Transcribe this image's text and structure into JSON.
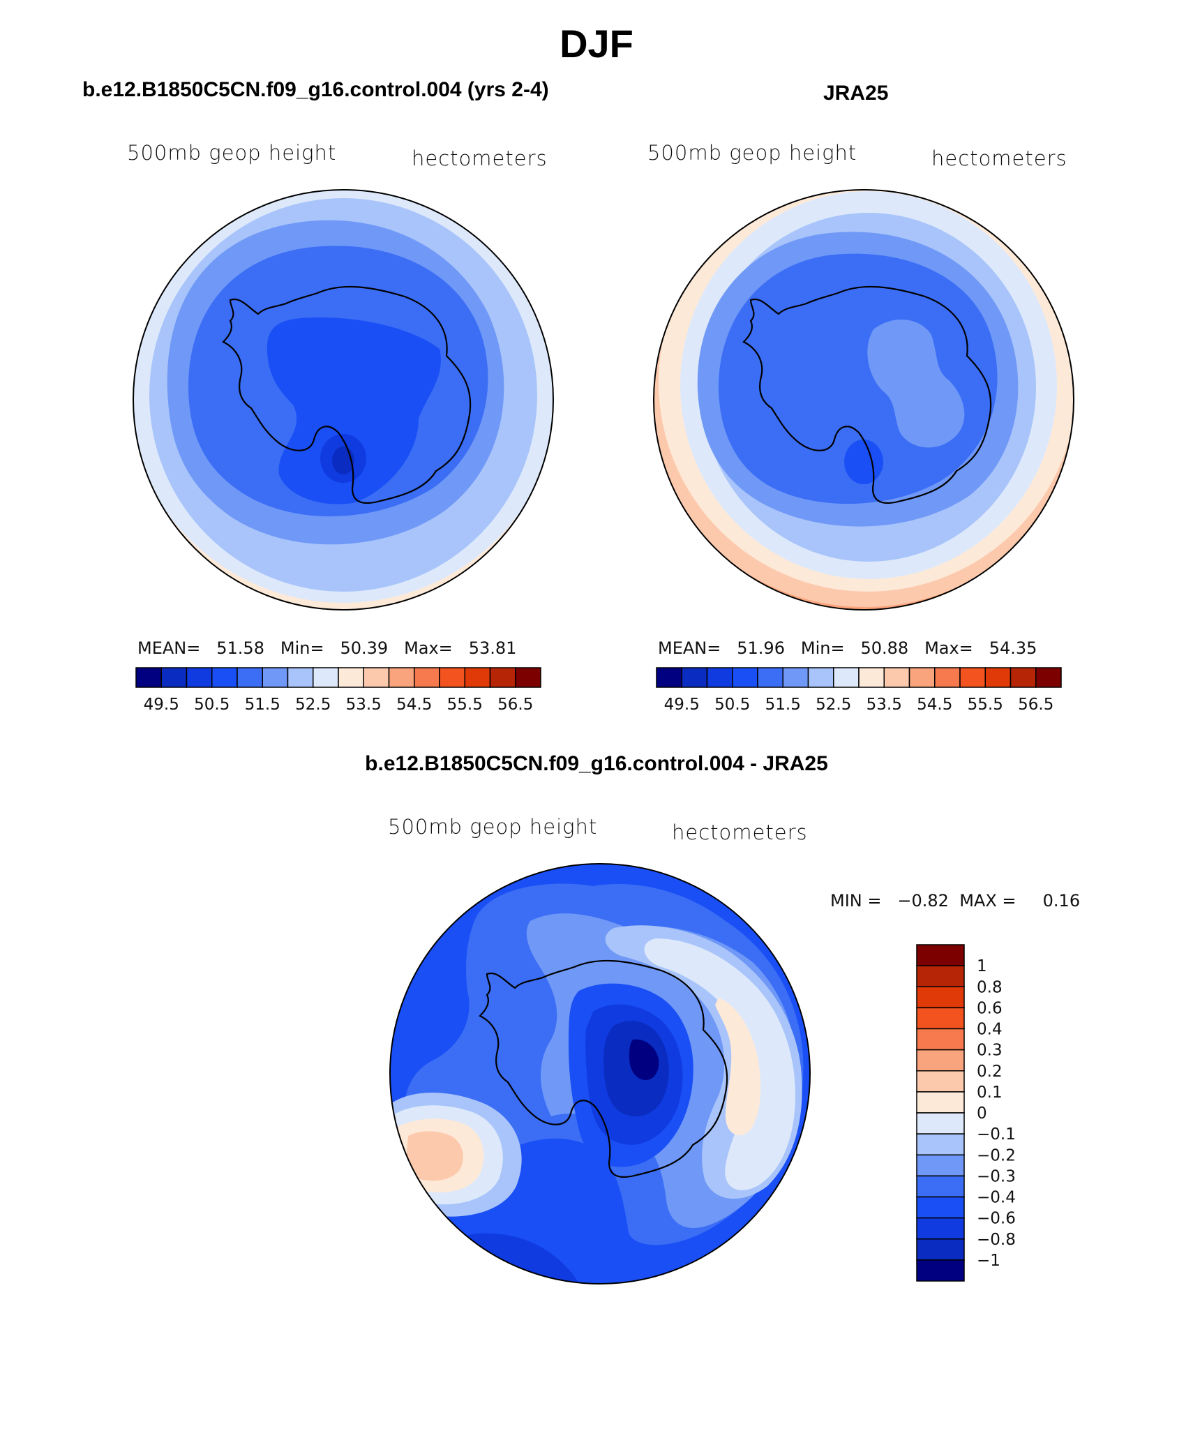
{
  "title": "DJF",
  "panels": [
    {
      "title": "b.e12.B1850C5CN.f09_g16.control.004 (yrs 2-4)",
      "left_label": "500mb geop height",
      "right_label": "hectometers",
      "mean_label": "MEAN=",
      "mean": "51.58",
      "min_label": "Min=",
      "min": "50.39",
      "max_label": "Max=",
      "max": "53.81"
    },
    {
      "title": "JRA25",
      "left_label": "500mb geop height",
      "right_label": "hectometers",
      "mean_label": "MEAN=",
      "mean": "51.96",
      "min_label": "Min=",
      "min": "50.88",
      "max_label": "Max=",
      "max": "54.35"
    }
  ],
  "diff_panel": {
    "title": "b.e12.B1850C5CN.f09_g16.control.004 - JRA25",
    "left_label": "500mb geop height",
    "right_label": "hectometers",
    "min_label": "MIN =",
    "min": "−0.82",
    "max_label": "MAX =",
    "max": "0.16"
  },
  "chart_data": [
    {
      "type": "heatmap",
      "projection": "south-polar-stereographic",
      "title": "b.e12.B1850C5CN.f09_g16.control.004 (yrs 2-4)",
      "variable": "500mb geop height",
      "units": "hectometers",
      "colorbar_ticks": [
        "49.5",
        "50.5",
        "51.5",
        "52.5",
        "53.5",
        "54.5",
        "55.5",
        "56.5"
      ],
      "colorbar_colors": [
        "#000080",
        "#0a2cc0",
        "#0f3be0",
        "#1a4ff5",
        "#3b6ef5",
        "#6f98f7",
        "#a8c4fa",
        "#dde9fb",
        "#fde9d8",
        "#fcc9ad",
        "#f9a47c",
        "#f67a4e",
        "#f3531f",
        "#e03a09",
        "#b62606",
        "#7d0000"
      ],
      "mean": 51.58,
      "min": 50.39,
      "max": 53.81
    },
    {
      "type": "heatmap",
      "projection": "south-polar-stereographic",
      "title": "JRA25",
      "variable": "500mb geop height",
      "units": "hectometers",
      "colorbar_ticks": [
        "49.5",
        "50.5",
        "51.5",
        "52.5",
        "53.5",
        "54.5",
        "55.5",
        "56.5"
      ],
      "colorbar_colors": [
        "#000080",
        "#0a2cc0",
        "#0f3be0",
        "#1a4ff5",
        "#3b6ef5",
        "#6f98f7",
        "#a8c4fa",
        "#dde9fb",
        "#fde9d8",
        "#fcc9ad",
        "#f9a47c",
        "#f67a4e",
        "#f3531f",
        "#e03a09",
        "#b62606",
        "#7d0000"
      ],
      "mean": 51.96,
      "min": 50.88,
      "max": 54.35
    },
    {
      "type": "heatmap",
      "projection": "south-polar-stereographic",
      "title": "b.e12.B1850C5CN.f09_g16.control.004 - JRA25",
      "variable": "500mb geop height",
      "units": "hectometers",
      "colorbar_ticks": [
        "1",
        "0.8",
        "0.6",
        "0.4",
        "0.3",
        "0.2",
        "0.1",
        "0",
        "−0.1",
        "−0.2",
        "−0.3",
        "−0.4",
        "−0.6",
        "−0.8",
        "−1"
      ],
      "colorbar_colors": [
        "#7d0000",
        "#b62606",
        "#e03a09",
        "#f3531f",
        "#f67a4e",
        "#f9a47c",
        "#fcc9ad",
        "#fde9d8",
        "#dde9fb",
        "#a8c4fa",
        "#6f98f7",
        "#3b6ef5",
        "#1a4ff5",
        "#0f3be0",
        "#0a2cc0",
        "#000080"
      ],
      "min": -0.82,
      "max": 0.16
    }
  ]
}
